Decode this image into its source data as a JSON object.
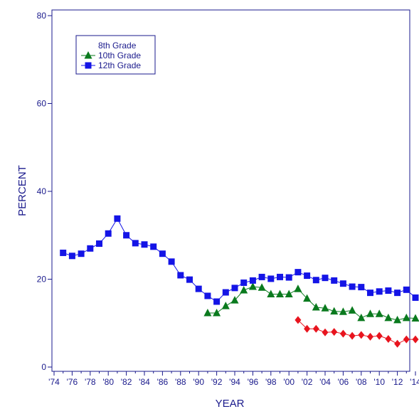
{
  "chart_data": {
    "type": "line",
    "xlabel": "YEAR",
    "ylabel": "PERCENT",
    "xlim": [
      1974,
      2014
    ],
    "ylim": [
      0,
      80
    ],
    "grid": false,
    "legend_placement": "top-left",
    "x_tick_labels": [
      "'74",
      "'76",
      "'78",
      "'80",
      "'82",
      "'84",
      "'86",
      "'88",
      "'90",
      "'92",
      "'94",
      "'96",
      "'98",
      "'00",
      "'02",
      "'04",
      "'06",
      "'08",
      "'10",
      "'12",
      "'14"
    ],
    "y_tick_labels": [
      "0",
      "20",
      "40",
      "60",
      "80"
    ],
    "series": [
      {
        "name": "8th Grade",
        "marker": "diamond",
        "color": "#e8141e",
        "x": [
          2001,
          2002,
          2003,
          2004,
          2005,
          2006,
          2007,
          2008,
          2009,
          2010,
          2011,
          2012,
          2013,
          2014
        ],
        "values": [
          10.7,
          8.7,
          8.7,
          7.9,
          8.0,
          7.6,
          7.1,
          7.3,
          6.9,
          7.1,
          6.4,
          5.3,
          6.3,
          6.3
        ]
      },
      {
        "name": "10th Grade",
        "marker": "triangle",
        "color": "#0a7a1e",
        "x": [
          1991,
          1992,
          1993,
          1994,
          1995,
          1996,
          1997,
          1998,
          1999,
          2000,
          2001,
          2002,
          2003,
          2004,
          2005,
          2006,
          2007,
          2008,
          2009,
          2010,
          2011,
          2012,
          2013,
          2014
        ],
        "values": [
          12.3,
          12.3,
          13.9,
          15.2,
          17.5,
          18.3,
          18.1,
          16.6,
          16.6,
          16.6,
          17.8,
          15.6,
          13.6,
          13.4,
          12.7,
          12.6,
          12.9,
          11.2,
          12.1,
          12.1,
          11.2,
          10.7,
          11.2,
          11.1
        ]
      },
      {
        "name": "12th Grade",
        "marker": "square",
        "color": "#1414e6",
        "x": [
          1975,
          1976,
          1977,
          1978,
          1979,
          1980,
          1981,
          1982,
          1983,
          1984,
          1985,
          1986,
          1987,
          1988,
          1989,
          1990,
          1991,
          1992,
          1993,
          1994,
          1995,
          1996,
          1997,
          1998,
          1999,
          2000,
          2001,
          2002,
          2003,
          2004,
          2005,
          2006,
          2007,
          2008,
          2009,
          2010,
          2011,
          2012,
          2013,
          2014
        ],
        "values": [
          26.0,
          25.3,
          25.8,
          27.0,
          28.1,
          30.4,
          33.8,
          30.0,
          28.2,
          27.9,
          27.4,
          25.8,
          24.0,
          20.9,
          19.9,
          17.8,
          16.2,
          14.9,
          17.0,
          18.0,
          19.2,
          19.7,
          20.5,
          20.1,
          20.5,
          20.4,
          21.6,
          20.8,
          19.8,
          20.3,
          19.7,
          19.0,
          18.3,
          18.2,
          16.9,
          17.2,
          17.4,
          16.9,
          17.6,
          15.8
        ]
      }
    ]
  }
}
